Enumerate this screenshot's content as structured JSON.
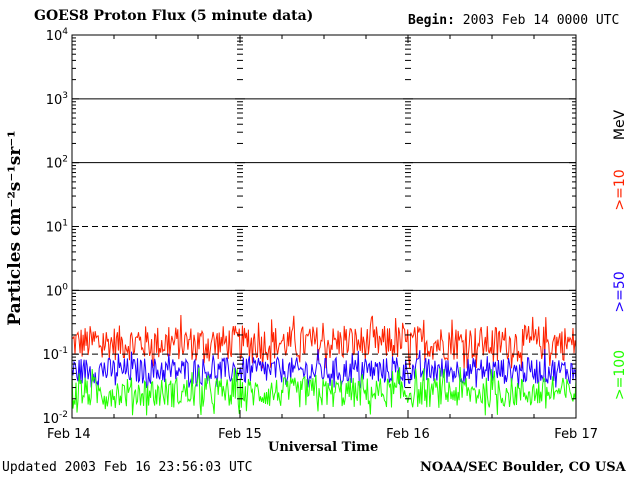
{
  "header": {
    "title": "GOES8 Proton Flux (5 minute data)",
    "begin_label": "Begin:",
    "begin_value": "2003 Feb 14 0000 UTC"
  },
  "footer": {
    "updated_label": "Updated",
    "updated_value": "2003 Feb 16 23:56:03 UTC",
    "credit": "NOAA/SEC Boulder, CO USA"
  },
  "colors": {
    "ge10": "#ff2200",
    "ge50": "#2200ff",
    "ge100": "#22ff00",
    "grid": "#000000"
  },
  "chart_data": {
    "type": "line",
    "title": "GOES8 Proton Flux (5 minute data)",
    "xlabel": "Universal Time",
    "ylabel": "Particles cm⁻²s⁻¹sr⁻¹",
    "y_scale": "log",
    "ylim": [
      0.01,
      10000
    ],
    "y_ticks": [
      {
        "value": 0.01,
        "base": "10",
        "exp": "-2"
      },
      {
        "value": 0.1,
        "base": "10",
        "exp": "-1"
      },
      {
        "value": 1,
        "base": "10",
        "exp": "0"
      },
      {
        "value": 10,
        "base": "10",
        "exp": "1"
      },
      {
        "value": 100,
        "base": "10",
        "exp": "2"
      },
      {
        "value": 1000,
        "base": "10",
        "exp": "3"
      },
      {
        "value": 10000,
        "base": "10",
        "exp": "4"
      }
    ],
    "x_range_days": [
      0,
      3
    ],
    "x_ticks": [
      {
        "day": 0,
        "label": "Feb 14"
      },
      {
        "day": 1,
        "label": "Feb 15"
      },
      {
        "day": 2,
        "label": "Feb 16"
      },
      {
        "day": 3,
        "label": "Feb 17"
      }
    ],
    "thresholds": [
      {
        "value": 10,
        "style": "dashed"
      },
      {
        "value": 0.1,
        "style": "dashed"
      }
    ],
    "unit_label": "MeV",
    "series": [
      {
        "name": ">=10",
        "color": "#ff2200",
        "typical": 0.15,
        "min": 0.06,
        "max": 0.5
      },
      {
        "name": ">=50",
        "color": "#2200ff",
        "typical": 0.055,
        "min": 0.03,
        "max": 0.15
      },
      {
        "name": ">=100",
        "color": "#22ff00",
        "typical": 0.025,
        "min": 0.011,
        "max": 0.07
      }
    ]
  }
}
